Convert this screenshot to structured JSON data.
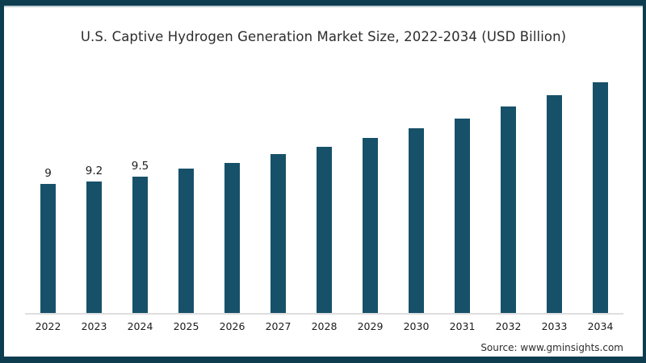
{
  "frame": {
    "border_color": "#0e3d50",
    "background": "#ffffff"
  },
  "chart_data": {
    "type": "bar",
    "title": "U.S. Captive Hydrogen Generation Market Size, 2022-2034 (USD Billion)",
    "categories": [
      "2022",
      "2023",
      "2024",
      "2025",
      "2026",
      "2027",
      "2028",
      "2029",
      "2030",
      "2031",
      "2032",
      "2033",
      "2034"
    ],
    "values": [
      9,
      9.2,
      9.5,
      10.1,
      10.5,
      11.1,
      11.6,
      12.2,
      12.9,
      13.6,
      14.4,
      15.2,
      16.1
    ],
    "data_labels": [
      "9",
      "9.2",
      "9.5",
      "",
      "",
      "",
      "",
      "",
      "",
      "",
      "",
      "",
      ""
    ],
    "bar_color": "#175169",
    "axis_line_color": "#dedede",
    "xlabel": "",
    "ylabel": "",
    "ylim": [
      0,
      16.9
    ],
    "grid": "off",
    "legend": "none",
    "y_axis_visible": false,
    "source": "Source: www.gminsights.com"
  }
}
